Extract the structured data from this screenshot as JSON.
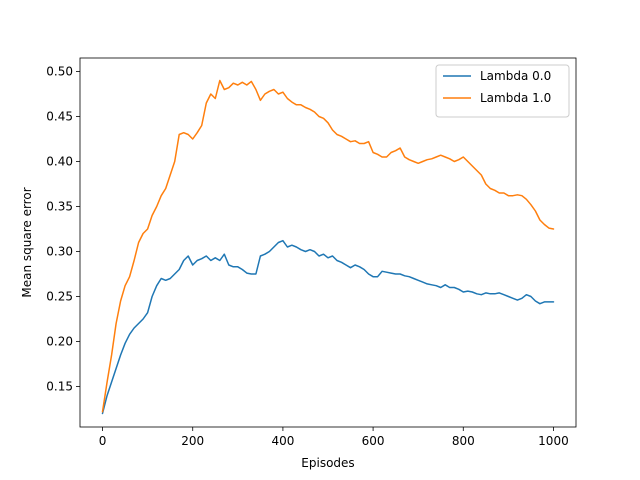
{
  "chart_data": {
    "type": "line",
    "title": "",
    "xlabel": "Episodes",
    "ylabel": "Mean square error",
    "xlim": [
      -50,
      1050
    ],
    "ylim": [
      0.105,
      0.515
    ],
    "xticks": [
      0,
      200,
      400,
      600,
      800,
      1000
    ],
    "xtick_labels": [
      "0",
      "200",
      "400",
      "600",
      "800",
      "1000"
    ],
    "yticks": [
      0.15,
      0.2,
      0.25,
      0.3,
      0.35,
      0.4,
      0.45,
      0.5
    ],
    "ytick_labels": [
      "0.15",
      "0.20",
      "0.25",
      "0.30",
      "0.35",
      "0.40",
      "0.45",
      "0.50"
    ],
    "grid": false,
    "legend_position": "top-right",
    "series": [
      {
        "name": "Lambda 0.0",
        "color": "#1f77b4",
        "x": [
          0,
          10,
          20,
          30,
          40,
          50,
          60,
          70,
          80,
          90,
          100,
          110,
          120,
          130,
          140,
          150,
          160,
          170,
          180,
          190,
          200,
          210,
          220,
          230,
          240,
          250,
          260,
          270,
          280,
          290,
          300,
          310,
          320,
          330,
          340,
          350,
          360,
          370,
          380,
          390,
          400,
          410,
          420,
          430,
          440,
          450,
          460,
          470,
          480,
          490,
          500,
          510,
          520,
          530,
          540,
          550,
          560,
          570,
          580,
          590,
          600,
          610,
          620,
          630,
          640,
          650,
          660,
          670,
          680,
          690,
          700,
          710,
          720,
          730,
          740,
          750,
          760,
          770,
          780,
          790,
          800,
          810,
          820,
          830,
          840,
          850,
          860,
          870,
          880,
          890,
          900,
          910,
          920,
          930,
          940,
          950,
          960,
          970,
          980,
          990,
          1000
        ],
        "y": [
          0.12,
          0.14,
          0.155,
          0.17,
          0.185,
          0.198,
          0.208,
          0.215,
          0.22,
          0.225,
          0.232,
          0.25,
          0.262,
          0.27,
          0.268,
          0.27,
          0.275,
          0.28,
          0.29,
          0.295,
          0.285,
          0.29,
          0.292,
          0.295,
          0.29,
          0.293,
          0.29,
          0.297,
          0.285,
          0.283,
          0.283,
          0.28,
          0.276,
          0.275,
          0.275,
          0.295,
          0.297,
          0.3,
          0.305,
          0.31,
          0.312,
          0.305,
          0.307,
          0.305,
          0.302,
          0.3,
          0.302,
          0.3,
          0.295,
          0.297,
          0.293,
          0.295,
          0.29,
          0.288,
          0.285,
          0.282,
          0.285,
          0.283,
          0.28,
          0.275,
          0.272,
          0.272,
          0.278,
          0.277,
          0.276,
          0.275,
          0.275,
          0.273,
          0.272,
          0.27,
          0.268,
          0.266,
          0.264,
          0.263,
          0.262,
          0.26,
          0.263,
          0.26,
          0.26,
          0.258,
          0.255,
          0.256,
          0.255,
          0.253,
          0.252,
          0.254,
          0.253,
          0.253,
          0.254,
          0.252,
          0.25,
          0.248,
          0.246,
          0.248,
          0.252,
          0.25,
          0.245,
          0.242,
          0.244,
          0.244,
          0.244
        ]
      },
      {
        "name": "Lambda 1.0",
        "color": "#ff7f0e",
        "x": [
          0,
          10,
          20,
          30,
          40,
          50,
          60,
          70,
          80,
          90,
          100,
          110,
          120,
          130,
          140,
          150,
          160,
          170,
          180,
          190,
          200,
          210,
          220,
          230,
          240,
          250,
          260,
          270,
          280,
          290,
          300,
          310,
          320,
          330,
          340,
          350,
          360,
          370,
          380,
          390,
          400,
          410,
          420,
          430,
          440,
          450,
          460,
          470,
          480,
          490,
          500,
          510,
          520,
          530,
          540,
          550,
          560,
          570,
          580,
          590,
          600,
          610,
          620,
          630,
          640,
          650,
          660,
          670,
          680,
          690,
          700,
          710,
          720,
          730,
          740,
          750,
          760,
          770,
          780,
          790,
          800,
          810,
          820,
          830,
          840,
          850,
          860,
          870,
          880,
          890,
          900,
          910,
          920,
          930,
          940,
          950,
          960,
          970,
          980,
          990,
          1000
        ],
        "y": [
          0.122,
          0.155,
          0.185,
          0.22,
          0.245,
          0.262,
          0.272,
          0.29,
          0.31,
          0.32,
          0.325,
          0.34,
          0.35,
          0.362,
          0.37,
          0.385,
          0.4,
          0.43,
          0.432,
          0.43,
          0.425,
          0.432,
          0.44,
          0.465,
          0.475,
          0.47,
          0.49,
          0.48,
          0.482,
          0.487,
          0.485,
          0.488,
          0.485,
          0.489,
          0.48,
          0.468,
          0.475,
          0.478,
          0.48,
          0.475,
          0.477,
          0.47,
          0.466,
          0.463,
          0.463,
          0.46,
          0.458,
          0.455,
          0.45,
          0.448,
          0.443,
          0.435,
          0.43,
          0.428,
          0.425,
          0.422,
          0.423,
          0.42,
          0.42,
          0.422,
          0.41,
          0.408,
          0.405,
          0.405,
          0.41,
          0.412,
          0.415,
          0.405,
          0.402,
          0.4,
          0.398,
          0.4,
          0.402,
          0.403,
          0.405,
          0.407,
          0.405,
          0.403,
          0.4,
          0.402,
          0.405,
          0.4,
          0.395,
          0.39,
          0.385,
          0.375,
          0.37,
          0.368,
          0.365,
          0.365,
          0.362,
          0.362,
          0.363,
          0.362,
          0.358,
          0.352,
          0.345,
          0.335,
          0.33,
          0.326,
          0.325
        ]
      }
    ]
  }
}
